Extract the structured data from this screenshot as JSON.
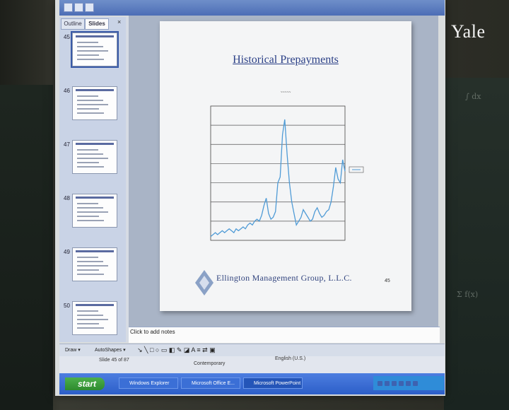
{
  "room": {
    "watermark": "Yale"
  },
  "panel": {
    "tabs": [
      {
        "label": "Outline"
      },
      {
        "label": "Slides"
      }
    ],
    "close": "×",
    "thumbnails": [
      {
        "number": "45"
      },
      {
        "number": "46"
      },
      {
        "number": "47"
      },
      {
        "number": "48"
      },
      {
        "number": "49"
      },
      {
        "number": "50"
      }
    ],
    "selected_index": 0
  },
  "slide": {
    "title": "Historical Prepayments",
    "logo_text": "Ellington Management Group, L.L.C.",
    "number": "45"
  },
  "notes": {
    "placeholder": "Click to add notes"
  },
  "drawbar": {
    "draw_label": "Draw ▾",
    "autoshapes_label": "AutoShapes ▾"
  },
  "statusbar": {
    "slide_info": "Slide 45 of 87",
    "design": "Contemporary",
    "language": "English (U.S.)"
  },
  "taskbar": {
    "start_label": "start",
    "items": [
      {
        "label": "Windows Explorer"
      },
      {
        "label": "Microsoft Office E..."
      },
      {
        "label": "Microsoft PowerPoint"
      }
    ]
  },
  "colors": {
    "slide_title": "#2a3f86",
    "chart_line": "#4f9bd6",
    "taskbar": "#2c5ec8"
  },
  "chart_data": {
    "type": "line",
    "series": [
      {
        "values": [
          2,
          3,
          4,
          3,
          4,
          5,
          4,
          5,
          6,
          5,
          4,
          6,
          5,
          6,
          7,
          6,
          8,
          9,
          8,
          10,
          11,
          10,
          13,
          18,
          22,
          14,
          11,
          12,
          15,
          30,
          33,
          55,
          63,
          45,
          30,
          20,
          14,
          8,
          10,
          12,
          16,
          14,
          12,
          10,
          11,
          15,
          17,
          14,
          12,
          13,
          15,
          16,
          20,
          28,
          38,
          32,
          30,
          42,
          36
        ]
      }
    ]
  }
}
